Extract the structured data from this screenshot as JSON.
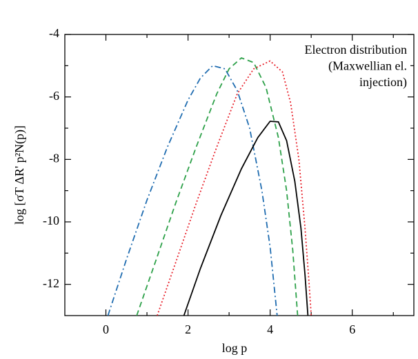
{
  "chart_data": {
    "type": "line",
    "annotation": [
      "Electron distribution",
      "(Maxwellian el.",
      "injection)"
    ],
    "xlabel": "log  p",
    "ylabel": "log [σT ΔR' p²N(p)]",
    "xlim": [
      -1,
      7.5
    ],
    "xticks": [
      0,
      2,
      4,
      6
    ],
    "xminorticks": [
      1,
      3,
      5,
      7
    ],
    "ylim": [
      -13,
      -4
    ],
    "yticks": [
      -4,
      -6,
      -8,
      -10,
      -12
    ],
    "yminorticks": [
      -5,
      -7,
      -9,
      -11
    ],
    "series": [
      {
        "color": "#1f6cb0",
        "dash": "9 4 2 4",
        "x": [
          0.05,
          0.5,
          1.0,
          1.5,
          2.0,
          2.3,
          2.6,
          2.9,
          3.2,
          3.5,
          3.8,
          4.0,
          4.17
        ],
        "values": [
          -13,
          -11.2,
          -9.3,
          -7.6,
          -6.1,
          -5.4,
          -5.0,
          -5.1,
          -5.8,
          -7.0,
          -9.0,
          -10.8,
          -13
        ]
      },
      {
        "color": "#2ca048",
        "dash": "8 5",
        "x": [
          0.75,
          1.2,
          1.7,
          2.2,
          2.7,
          3.0,
          3.3,
          3.6,
          3.9,
          4.2,
          4.4,
          4.55,
          4.67
        ],
        "values": [
          -13,
          -11.3,
          -9.4,
          -7.6,
          -5.9,
          -5.1,
          -4.75,
          -4.9,
          -5.7,
          -7.3,
          -9.0,
          -10.9,
          -13
        ]
      },
      {
        "color": "#e8202a",
        "dash": "2 3",
        "x": [
          1.25,
          1.7,
          2.2,
          2.7,
          3.2,
          3.6,
          4.0,
          4.3,
          4.5,
          4.7,
          4.85,
          4.95,
          5.0
        ],
        "values": [
          -13,
          -11.3,
          -9.4,
          -7.6,
          -5.9,
          -5.1,
          -4.85,
          -5.2,
          -6.2,
          -8.0,
          -10.2,
          -12.0,
          -13
        ]
      },
      {
        "color": "#000000",
        "dash": "none",
        "x": [
          1.9,
          2.3,
          2.8,
          3.3,
          3.7,
          4.0,
          4.2,
          4.4,
          4.6,
          4.75,
          4.85,
          4.92
        ],
        "values": [
          -13,
          -11.5,
          -9.8,
          -8.3,
          -7.3,
          -6.78,
          -6.8,
          -7.4,
          -8.7,
          -10.2,
          -11.7,
          -13
        ]
      }
    ]
  }
}
